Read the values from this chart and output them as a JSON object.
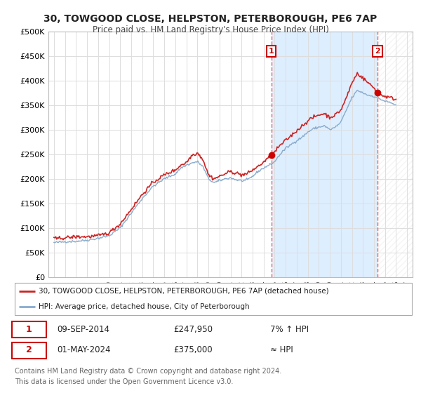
{
  "title_line1": "30, TOWGOOD CLOSE, HELPSTON, PETERBOROUGH, PE6 7AP",
  "title_line2": "Price paid vs. HM Land Registry's House Price Index (HPI)",
  "ylim": [
    0,
    500000
  ],
  "yticks": [
    0,
    50000,
    100000,
    150000,
    200000,
    250000,
    300000,
    350000,
    400000,
    450000,
    500000
  ],
  "ytick_labels": [
    "£0",
    "£50K",
    "£100K",
    "£150K",
    "£200K",
    "£250K",
    "£300K",
    "£350K",
    "£400K",
    "£450K",
    "£500K"
  ],
  "xlim_start": 1994.5,
  "xlim_end": 2027.5,
  "xticks": [
    1995,
    1996,
    1997,
    1998,
    1999,
    2000,
    2001,
    2002,
    2003,
    2004,
    2005,
    2006,
    2007,
    2008,
    2009,
    2010,
    2011,
    2012,
    2013,
    2014,
    2015,
    2016,
    2017,
    2018,
    2019,
    2020,
    2021,
    2022,
    2023,
    2024,
    2025,
    2026,
    2027
  ],
  "sale1_x": 2014.69,
  "sale1_y": 247950,
  "sale1_label": "1",
  "sale1_date": "09-SEP-2014",
  "sale1_price": "£247,950",
  "sale1_hpi": "7% ↑ HPI",
  "sale2_x": 2024.33,
  "sale2_y": 375000,
  "sale2_label": "2",
  "sale2_date": "01-MAY-2024",
  "sale2_price": "£375,000",
  "sale2_hpi": "≈ HPI",
  "vline_color": "#e05555",
  "price_line_color": "#cc2222",
  "hpi_line_color": "#88aacc",
  "bg_color": "#ffffff",
  "plot_bg_color": "#f0f0f0",
  "grid_color": "#dddddd",
  "span_blue_color": "#ddeeff",
  "span_hatch_color": "#e8e8e8",
  "legend_line1": "30, TOWGOOD CLOSE, HELPSTON, PETERBOROUGH, PE6 7AP (detached house)",
  "legend_line2": "HPI: Average price, detached house, City of Peterborough",
  "footer_line1": "Contains HM Land Registry data © Crown copyright and database right 2024.",
  "footer_line2": "This data is licensed under the Open Government Licence v3.0.",
  "marker_color": "#cc0000",
  "label_box_color": "#cc0000",
  "hpi_anchors_x": [
    1995.0,
    1995.5,
    1996.0,
    1997.0,
    1998.0,
    1999.0,
    2000.0,
    2001.0,
    2002.0,
    2003.0,
    2004.0,
    2005.0,
    2005.5,
    2006.0,
    2006.5,
    2007.0,
    2007.5,
    2008.0,
    2008.5,
    2009.0,
    2009.5,
    2010.0,
    2010.5,
    2011.0,
    2011.5,
    2012.0,
    2012.5,
    2013.0,
    2013.5,
    2014.0,
    2014.5,
    2014.69,
    2015.0,
    2015.5,
    2016.0,
    2016.5,
    2017.0,
    2017.5,
    2018.0,
    2018.5,
    2019.0,
    2019.5,
    2020.0,
    2020.5,
    2021.0,
    2021.5,
    2022.0,
    2022.5,
    2023.0,
    2023.5,
    2024.0,
    2024.33,
    2024.5,
    2025.0,
    2025.5,
    2026.0
  ],
  "hpi_anchors_y": [
    70000,
    71000,
    72000,
    73000,
    75000,
    79000,
    84000,
    100000,
    130000,
    160000,
    185000,
    200000,
    205000,
    210000,
    222000,
    228000,
    232000,
    235000,
    225000,
    200000,
    192000,
    196000,
    200000,
    202000,
    198000,
    196000,
    197000,
    205000,
    215000,
    222000,
    228000,
    230000,
    235000,
    250000,
    262000,
    270000,
    278000,
    285000,
    295000,
    302000,
    305000,
    308000,
    300000,
    305000,
    315000,
    340000,
    365000,
    380000,
    375000,
    370000,
    368000,
    365000,
    363000,
    358000,
    355000,
    350000
  ],
  "price_anchors_x": [
    1995.0,
    1995.5,
    1996.0,
    1997.0,
    1998.0,
    1999.0,
    2000.0,
    2001.0,
    2002.0,
    2003.0,
    2004.0,
    2005.0,
    2005.5,
    2006.0,
    2006.5,
    2007.0,
    2007.5,
    2008.0,
    2008.5,
    2009.0,
    2009.5,
    2010.0,
    2010.5,
    2011.0,
    2011.5,
    2012.0,
    2012.5,
    2013.0,
    2013.5,
    2014.0,
    2014.5,
    2014.69,
    2015.0,
    2015.5,
    2016.0,
    2016.5,
    2017.0,
    2017.5,
    2018.0,
    2018.5,
    2019.0,
    2019.5,
    2020.0,
    2020.5,
    2021.0,
    2021.5,
    2022.0,
    2022.5,
    2023.0,
    2023.5,
    2024.0,
    2024.33,
    2024.5,
    2025.0,
    2025.5,
    2026.0
  ],
  "price_anchors_y": [
    78000,
    79000,
    80000,
    82000,
    82000,
    84000,
    90000,
    108000,
    138000,
    168000,
    193000,
    208000,
    213000,
    218000,
    228000,
    233000,
    248000,
    253000,
    240000,
    208000,
    200000,
    205000,
    210000,
    215000,
    212000,
    208000,
    210000,
    218000,
    225000,
    234000,
    243000,
    247950,
    255000,
    268000,
    278000,
    288000,
    298000,
    308000,
    318000,
    325000,
    330000,
    333000,
    325000,
    330000,
    340000,
    365000,
    395000,
    415000,
    405000,
    395000,
    385000,
    375000,
    372000,
    368000,
    365000,
    362000
  ]
}
